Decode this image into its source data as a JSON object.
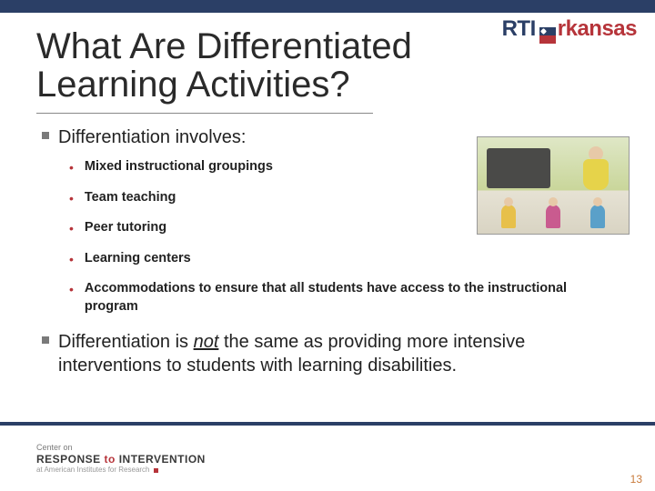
{
  "colors": {
    "navy": "#2b3f66",
    "red": "#b6343a",
    "orange": "#c97a3a",
    "gray_bullet": "#7a7a7a"
  },
  "brand": {
    "prefix": "RTI",
    "suffix": "rkansas"
  },
  "title": "What Are Differentiated Learning Activities?",
  "bullets": [
    {
      "text": "Differentiation involves:",
      "sub": [
        "Mixed instructional groupings",
        "Team teaching",
        "Peer tutoring",
        "Learning centers",
        "Accommodations to ensure that all students have access to the instructional program"
      ]
    },
    {
      "text_pre": "Differentiation is ",
      "text_em": "not",
      "text_post": " the same as providing more intensive interventions to students with learning disabilities."
    }
  ],
  "footer": {
    "line1": "Center on",
    "line2a": "RESPONSE ",
    "line2b": "to",
    "line2c": " INTERVENTION",
    "line3": "at American Institutes for Research"
  },
  "page_number": "13"
}
